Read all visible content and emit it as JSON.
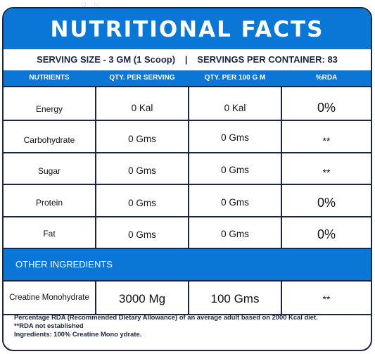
{
  "watermark": "O N",
  "title": "NUTRITIONAL FACTS",
  "serving": {
    "size": "SERVING SIZE - 3 GM (1 Scoop)",
    "separator": "|",
    "per_container": "SERVINGS PER CONTAINER: 83"
  },
  "columns": {
    "nutrients": "NUTRIENTS",
    "per_serving": "QTY. PER SERVING",
    "per_100g": "QTY. PER 100 G M",
    "rda": "%RDA"
  },
  "rows": [
    {
      "name": "Energy",
      "per_serving": "0 Kal",
      "per_100g": "0 Kal",
      "rda": "0%"
    },
    {
      "name": "Carbohydrate",
      "per_serving": "0 Gms",
      "per_100g": "0 Gms",
      "rda": "**"
    },
    {
      "name": "Sugar",
      "per_serving": "0 Gms",
      "per_100g": "0 Gms",
      "rda": "**"
    },
    {
      "name": "Protein",
      "per_serving": "0 Gms",
      "per_100g": "0 Gms",
      "rda": "0%"
    },
    {
      "name": "Fat",
      "per_serving": "0 Gms",
      "per_100g": "0 Gms",
      "rda": "0%"
    }
  ],
  "other_ingredients": {
    "label": "OTHER INGREDIENTS",
    "row": {
      "name": "Creatine Monohydrate",
      "per_serving": "3000 Mg",
      "per_100g": "100 Gms",
      "rda": "**"
    }
  },
  "footer": {
    "line1": "Percentage RDA (Recommended Dietary Allowance) of an average adult based on 2000 Kcal diet.",
    "line2": "**RDA not established",
    "line3": "Ingredients: 100% Creatine Mono  ydrate."
  },
  "colors": {
    "accent_blue": "#0a76d6",
    "border_navy": "#1c2541"
  }
}
